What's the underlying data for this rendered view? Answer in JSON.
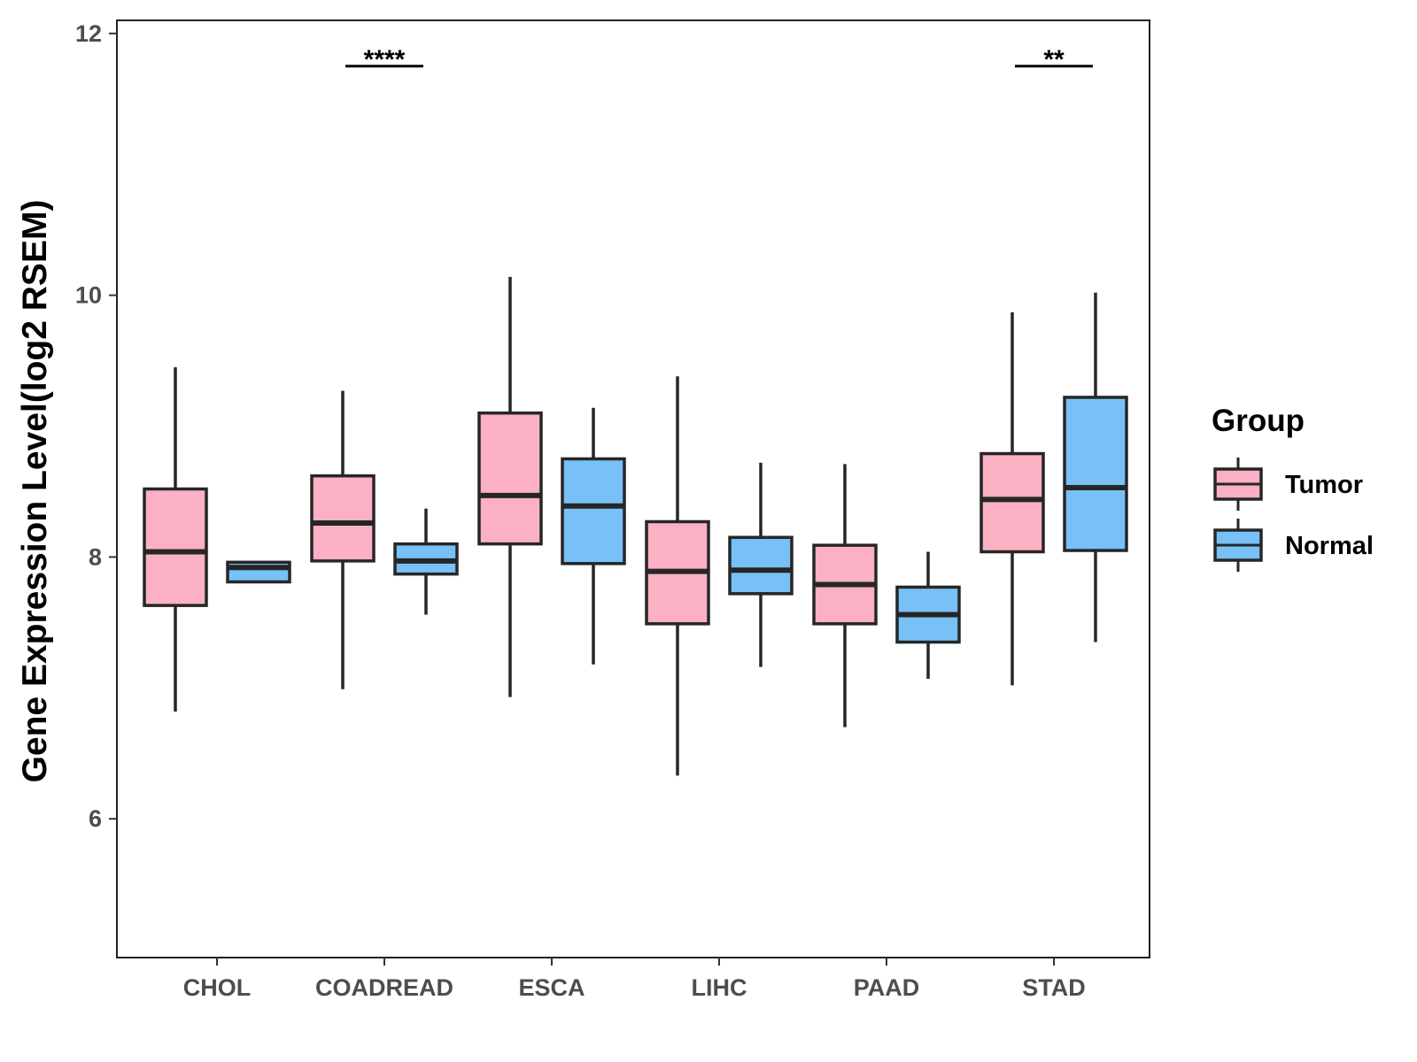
{
  "chart_data": {
    "type": "boxplot",
    "title": "",
    "xlabel": "",
    "ylabel": "Gene Expression Level(log2 RSEM)",
    "ylim": [
      4.94,
      12.1
    ],
    "yticks": [
      6,
      8,
      10,
      12
    ],
    "categories": [
      "CHOL",
      "COADREAD",
      "ESCA",
      "LIHC",
      "PAAD",
      "STAD"
    ],
    "legend": {
      "title": "Group",
      "position": "right"
    },
    "series": [
      {
        "name": "Tumor",
        "color": "#fbb1c3",
        "boxes": [
          {
            "category": "CHOL",
            "whisker_low": 6.82,
            "q1": 7.63,
            "median": 8.04,
            "q3": 8.52,
            "whisker_high": 9.45
          },
          {
            "category": "COADREAD",
            "whisker_low": 6.99,
            "q1": 7.97,
            "median": 8.26,
            "q3": 8.62,
            "whisker_high": 9.27
          },
          {
            "category": "ESCA",
            "whisker_low": 6.93,
            "q1": 8.1,
            "median": 8.47,
            "q3": 9.1,
            "whisker_high": 10.14
          },
          {
            "category": "LIHC",
            "whisker_low": 6.33,
            "q1": 7.49,
            "median": 7.89,
            "q3": 8.27,
            "whisker_high": 9.38
          },
          {
            "category": "PAAD",
            "whisker_low": 6.7,
            "q1": 7.49,
            "median": 7.79,
            "q3": 8.09,
            "whisker_high": 8.71
          },
          {
            "category": "STAD",
            "whisker_low": 7.02,
            "q1": 8.04,
            "median": 8.44,
            "q3": 8.79,
            "whisker_high": 9.87
          }
        ]
      },
      {
        "name": "Normal",
        "color": "#77c1f7",
        "boxes": [
          {
            "category": "CHOL",
            "whisker_low": 7.81,
            "q1": 7.81,
            "median": 7.92,
            "q3": 7.96,
            "whisker_high": 7.96
          },
          {
            "category": "COADREAD",
            "whisker_low": 7.56,
            "q1": 7.87,
            "median": 7.97,
            "q3": 8.1,
            "whisker_high": 8.37
          },
          {
            "category": "ESCA",
            "whisker_low": 7.18,
            "q1": 7.95,
            "median": 8.39,
            "q3": 8.75,
            "whisker_high": 9.14
          },
          {
            "category": "LIHC",
            "whisker_low": 7.16,
            "q1": 7.72,
            "median": 7.9,
            "q3": 8.15,
            "whisker_high": 8.72
          },
          {
            "category": "PAAD",
            "whisker_low": 7.07,
            "q1": 7.35,
            "median": 7.56,
            "q3": 7.77,
            "whisker_high": 8.04
          },
          {
            "category": "STAD",
            "whisker_low": 7.35,
            "q1": 8.05,
            "median": 8.53,
            "q3": 9.22,
            "whisker_high": 10.02
          }
        ]
      }
    ],
    "annotations": [
      {
        "category": "COADREAD",
        "label": "****",
        "y": 11.75
      },
      {
        "category": "STAD",
        "label": "**",
        "y": 11.75
      }
    ]
  }
}
